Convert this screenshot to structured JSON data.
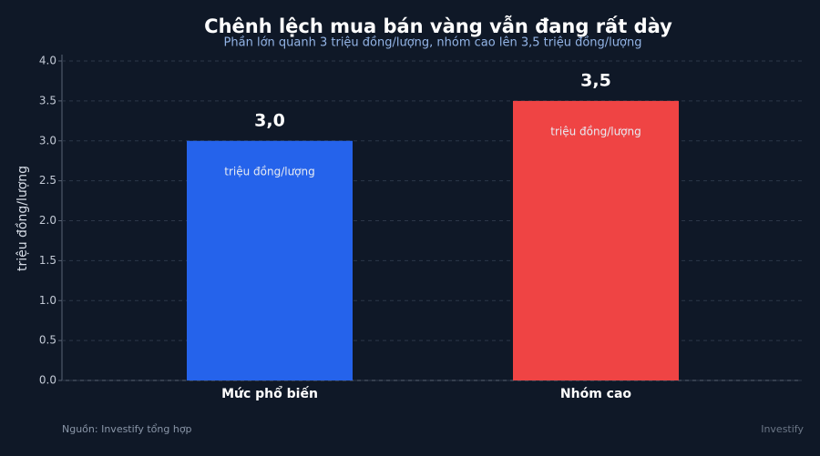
{
  "chart_data": {
    "type": "bar",
    "title": "Chênh lệch mua bán vàng vẫn đang rất dày",
    "subtitle": "Phần lớn quanh 3 triệu đồng/lượng, nhóm cao lên 3,5 triệu đồng/lượng",
    "y_label": "triệu đồng/lượng",
    "categories": [
      "Mức phổ biến",
      "Nhóm cao"
    ],
    "values": [
      3.0,
      3.5
    ],
    "value_labels": [
      "3,0",
      "3,5"
    ],
    "value_units": [
      "triệu đồng/lượng",
      "triệu đồng/lượng"
    ],
    "colors": [
      "#2563eb",
      "#ef4444"
    ],
    "ylim": [
      0,
      4
    ],
    "yticks": [
      {
        "value": 0,
        "label": "0.0"
      },
      {
        "value": 0.5,
        "label": "0.5"
      },
      {
        "value": 1,
        "label": "1.0"
      },
      {
        "value": 1.5,
        "label": "1.5"
      },
      {
        "value": 2,
        "label": "2.0"
      },
      {
        "value": 2.5,
        "label": "2.5"
      },
      {
        "value": 3,
        "label": "3.0"
      },
      {
        "value": 3.5,
        "label": "3.5"
      },
      {
        "value": 4,
        "label": "4.0"
      }
    ],
    "grid": true,
    "source": "Nguồn: Investify tổng hợp",
    "brand": "Investify"
  }
}
